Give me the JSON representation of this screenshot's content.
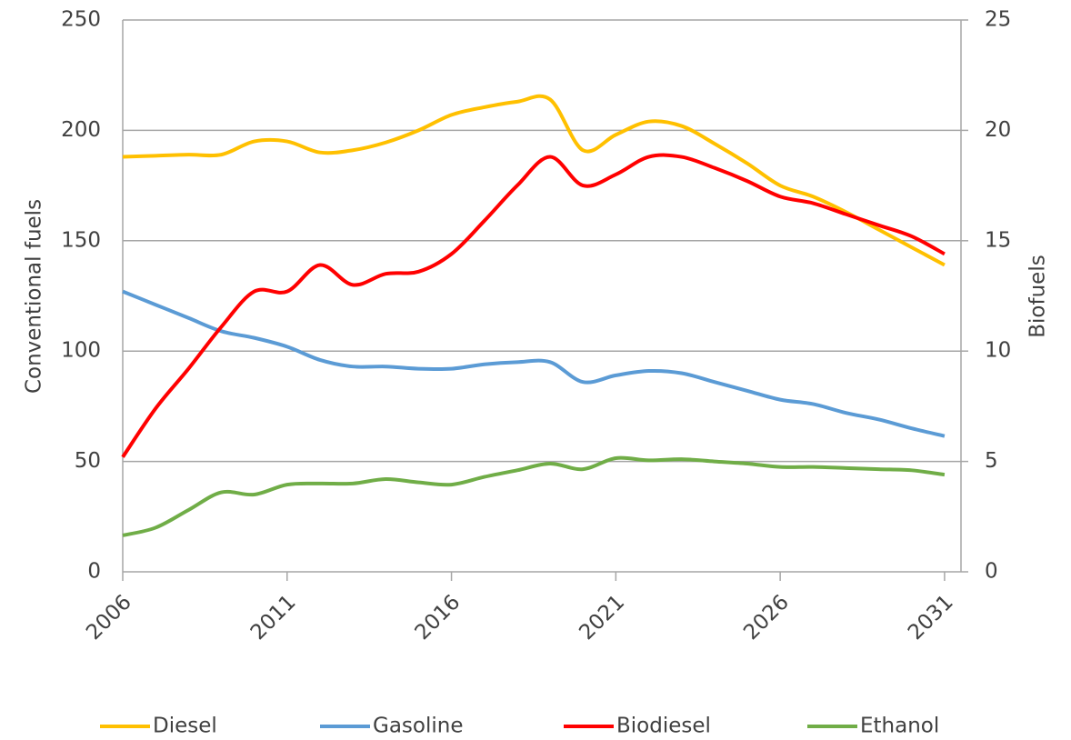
{
  "chart_data": {
    "type": "line",
    "y_label": "Conventional fuels",
    "y2_label": "Biofuels",
    "x": [
      2006,
      2007,
      2008,
      2009,
      2010,
      2011,
      2012,
      2013,
      2014,
      2015,
      2016,
      2017,
      2018,
      2019,
      2020,
      2021,
      2022,
      2023,
      2024,
      2025,
      2026,
      2027,
      2028,
      2029,
      2030,
      2031
    ],
    "xlim": [
      2006,
      2031.5
    ],
    "xticks": [
      2006,
      2011,
      2016,
      2021,
      2026,
      2031
    ],
    "ylim": [
      0,
      250
    ],
    "yticks": [
      0,
      50,
      100,
      150,
      200,
      250
    ],
    "y2lim": [
      0,
      25
    ],
    "y2ticks": [
      0,
      5,
      10,
      15,
      20,
      25
    ],
    "grid": true,
    "legend": "bottom",
    "series": [
      {
        "name": "Diesel",
        "color": "#ffc000",
        "values": [
          188,
          188.5,
          189,
          189,
          195,
          195,
          190,
          191,
          194.5,
          200,
          207,
          210.5,
          213,
          214,
          191,
          198,
          204,
          202,
          194,
          185,
          175,
          170,
          163,
          155,
          147,
          139
        ]
      },
      {
        "name": "Gasoline",
        "color": "#5b9bd5",
        "values": [
          127,
          121,
          115,
          109,
          106,
          102,
          96,
          93,
          93,
          92,
          92,
          94,
          95,
          95,
          86,
          89,
          91,
          90,
          86,
          82,
          78,
          76,
          72,
          69,
          65,
          61.5
        ]
      },
      {
        "name": "Biodiesel",
        "color": "#ff0000",
        "axis": "y2",
        "values": [
          5.2,
          7.4,
          9.2,
          11.1,
          12.7,
          12.7,
          13.9,
          13.0,
          13.5,
          13.6,
          14.4,
          15.9,
          17.5,
          18.8,
          17.5,
          18.0,
          18.8,
          18.8,
          18.3,
          17.7,
          17.0,
          16.7,
          16.2,
          15.7,
          15.2,
          14.4
        ]
      },
      {
        "name": "Ethanol",
        "color": "#70ad47",
        "axis": "y2",
        "values": [
          1.65,
          2.0,
          2.8,
          3.6,
          3.5,
          3.95,
          4.0,
          4.0,
          4.2,
          4.05,
          3.95,
          4.3,
          4.6,
          4.9,
          4.65,
          5.15,
          5.05,
          5.1,
          5.0,
          4.9,
          4.75,
          4.75,
          4.7,
          4.65,
          4.6,
          4.4
        ]
      }
    ]
  }
}
